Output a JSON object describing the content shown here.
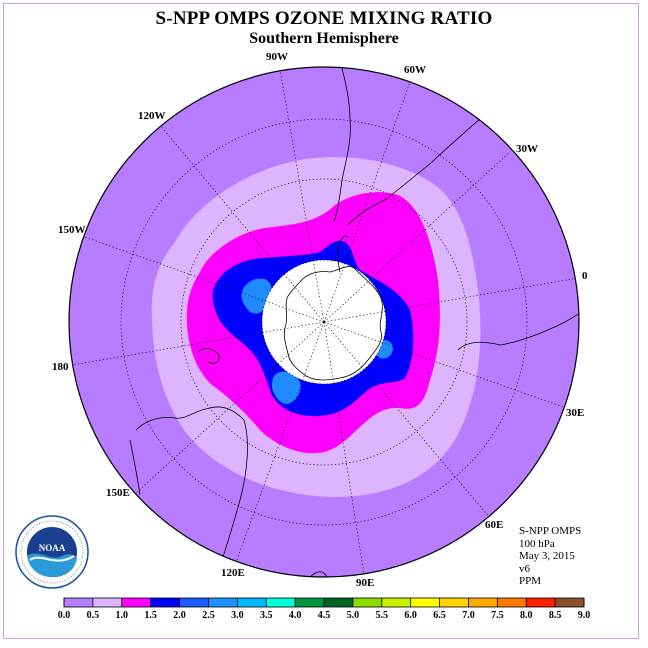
{
  "title": "S-NPP OMPS OZONE MIXING RATIO",
  "subtitle": "Southern Hemisphere",
  "longitude_labels": [
    "90W",
    "60W",
    "30W",
    "0",
    "30E",
    "60E",
    "90E",
    "120E",
    "150E",
    "180",
    "150W",
    "120W"
  ],
  "info": {
    "instrument": "S-NPP OMPS",
    "level": "100 hPa",
    "date": "May 3, 2015",
    "version": "v6",
    "units": "PPM"
  },
  "colorbar": {
    "ticks": [
      "0.0",
      "0.5",
      "1.0",
      "1.5",
      "2.0",
      "2.5",
      "3.0",
      "3.5",
      "4.0",
      "4.5",
      "5.0",
      "5.5",
      "6.0",
      "6.5",
      "7.0",
      "7.5",
      "8.0",
      "8.5",
      "9.0"
    ],
    "colors": [
      "#b77cff",
      "#dcb4ff",
      "#ff00ff",
      "#0000ff",
      "#1c5cff",
      "#1e90ff",
      "#00b8ff",
      "#00ffd8",
      "#009640",
      "#006428",
      "#8edc00",
      "#c8f000",
      "#ffff00",
      "#ffd200",
      "#ffaa00",
      "#ff7800",
      "#ff1e00",
      "#8c5028"
    ]
  },
  "logo": {
    "text": "NOAA"
  }
}
